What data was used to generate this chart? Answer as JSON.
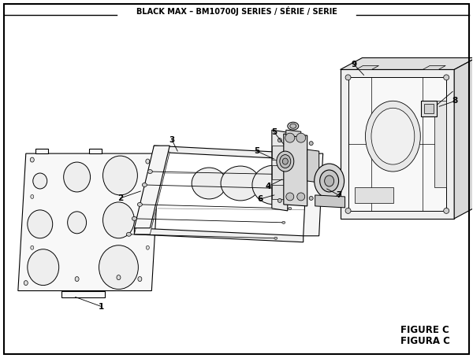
{
  "title": "BLACK MAX – BM10700J SERIES / SÉRIE / SERIE",
  "figure_label": "FIGURE C",
  "figura_label": "FIGURA C",
  "bg_color": "#ffffff",
  "border_color": "#000000",
  "text_color": "#000000",
  "fig_width": 6.0,
  "fig_height": 4.55,
  "dpi": 100
}
